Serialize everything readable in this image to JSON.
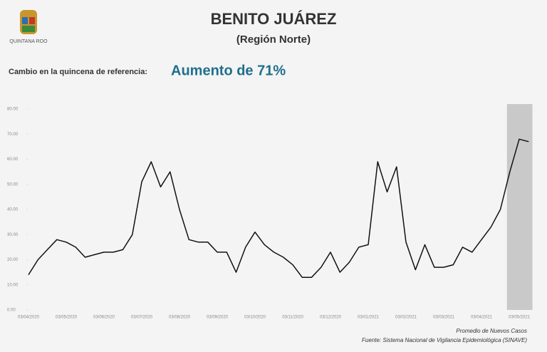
{
  "header": {
    "title": "BENITO JUÁREZ",
    "subtitle": "(Región Norte)",
    "logo_text": "QUINTANA ROO",
    "change_label": "Cambio en la quincena de referencia:",
    "change_value": "Aumento de 71%"
  },
  "chart_data": {
    "type": "line",
    "categories": [
      "03/04/2020",
      null,
      null,
      null,
      "03/05/2020",
      null,
      null,
      null,
      "03/06/2020",
      null,
      null,
      null,
      "03/07/2020",
      null,
      null,
      null,
      "03/08/2020",
      null,
      null,
      null,
      "03/09/2020",
      null,
      null,
      null,
      "03/10/2020",
      null,
      null,
      null,
      "03/11/2020",
      null,
      null,
      null,
      "03/12/2020",
      null,
      null,
      null,
      "03/01/2021",
      null,
      null,
      null,
      "03/02/2021",
      null,
      null,
      null,
      "03/03/2021",
      null,
      null,
      null,
      "03/04/2021",
      null,
      null,
      null,
      "03/05/2021",
      null
    ],
    "series": [
      {
        "name": "Promedio de Nuevos Casos",
        "color": "#111111",
        "values": [
          14,
          20,
          24,
          28,
          27,
          25,
          21,
          22,
          23,
          23,
          24,
          30,
          51,
          59,
          49,
          55,
          40,
          28,
          27,
          27,
          23,
          23,
          15,
          25,
          31,
          26,
          23,
          21,
          18,
          13,
          13,
          17,
          23,
          15,
          19,
          25,
          26,
          59,
          47,
          57,
          27,
          16,
          26,
          17,
          17,
          18,
          25,
          23,
          28,
          33,
          40,
          55,
          68,
          67
        ]
      }
    ],
    "ylim": [
      0,
      80
    ],
    "yticks": [
      {
        "value": 0,
        "label": "0.00"
      },
      {
        "value": 10,
        "label": "10.00"
      },
      {
        "value": 20,
        "label": "20.00"
      },
      {
        "value": 30,
        "label": "30.00"
      },
      {
        "value": 40,
        "label": "40.00"
      },
      {
        "value": 50,
        "label": "50.00"
      },
      {
        "value": 60,
        "label": "60.00"
      },
      {
        "value": 70,
        "label": "70.00"
      },
      {
        "value": 80,
        "label": "80.00"
      }
    ],
    "grid": false,
    "source": "Fuente: Sistema Nacional de Vigilancia Epidemiológica (SINAVE)"
  }
}
